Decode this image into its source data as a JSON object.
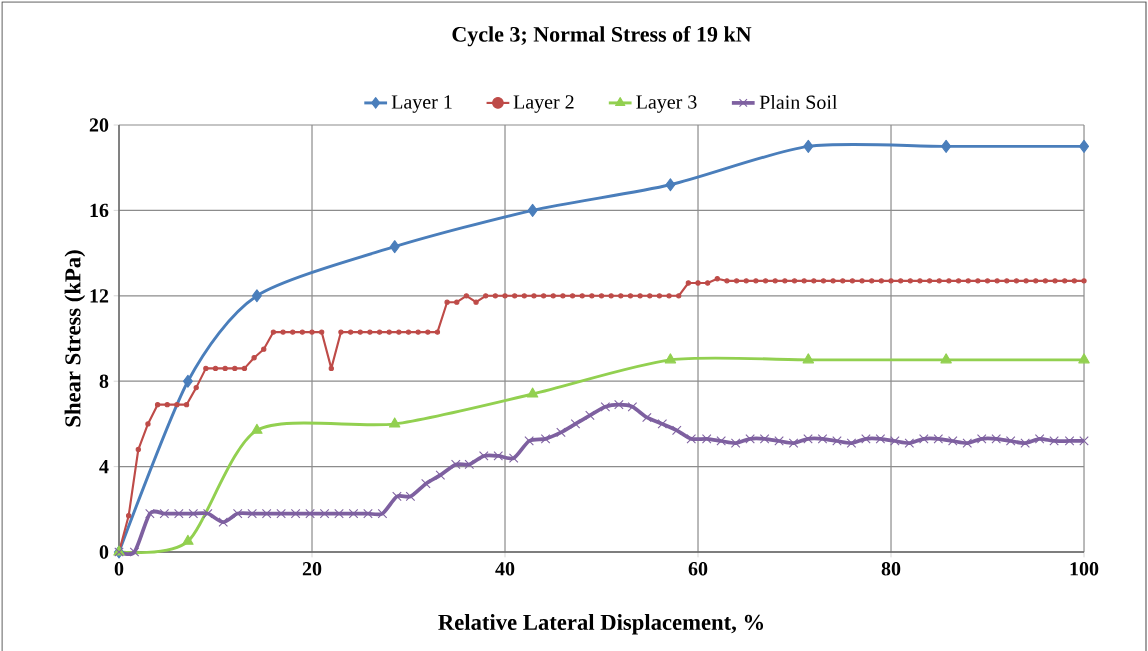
{
  "chart_data": {
    "type": "line",
    "title": "Cycle 3; Normal Stress of 19 kN",
    "xlabel": "Relative Lateral Displacement, %",
    "ylabel": "Shear Stress (kPa)",
    "xlim": [
      0,
      100
    ],
    "ylim": [
      0,
      20
    ],
    "xticks": [
      0,
      20,
      40,
      60,
      80,
      100
    ],
    "yticks": [
      0,
      4,
      8,
      12,
      16,
      20
    ],
    "grid": true,
    "legend": "top",
    "line_style": "solid",
    "series": [
      {
        "name": "Layer 1",
        "color": "#4a7ebb",
        "marker": "diamond",
        "x": [
          0,
          7.14,
          14.29,
          28.57,
          42.86,
          57.14,
          71.43,
          85.71,
          100
        ],
        "values": [
          0,
          8,
          12,
          14.3,
          16,
          17.2,
          19,
          19,
          19
        ]
      },
      {
        "name": "Layer 2",
        "color": "#be4b48",
        "marker": "circle",
        "x": [
          0,
          1,
          2,
          3,
          4,
          5,
          6,
          7,
          8,
          9,
          10,
          11,
          12,
          13,
          14,
          15,
          16,
          17,
          18,
          19,
          20,
          21,
          22,
          23,
          24,
          25,
          26,
          27,
          28,
          29,
          30,
          31,
          32,
          33,
          34,
          35,
          36,
          37,
          38,
          39,
          40,
          41,
          42,
          43,
          44,
          45,
          46,
          47,
          48,
          49,
          50,
          51,
          52,
          53,
          54,
          55,
          56,
          57,
          58,
          59,
          60,
          61,
          62,
          63,
          64,
          65,
          66,
          67,
          68,
          69,
          70,
          71,
          72,
          73,
          74,
          75,
          76,
          77,
          78,
          79,
          80,
          81,
          82,
          83,
          84,
          85,
          86,
          87,
          88,
          89,
          90,
          91,
          92,
          93,
          94,
          95,
          96,
          97,
          98,
          99,
          100
        ],
        "values": [
          0,
          1.7,
          4.8,
          6,
          6.9,
          6.9,
          6.9,
          6.9,
          7.7,
          8.6,
          8.6,
          8.6,
          8.6,
          8.6,
          9.1,
          9.5,
          10.3,
          10.3,
          10.3,
          10.3,
          10.3,
          10.3,
          8.6,
          10.3,
          10.3,
          10.3,
          10.3,
          10.3,
          10.3,
          10.3,
          10.3,
          10.3,
          10.3,
          10.3,
          11.7,
          11.7,
          12,
          11.7,
          12,
          12,
          12,
          12,
          12,
          12,
          12,
          12,
          12,
          12,
          12,
          12,
          12,
          12,
          12,
          12,
          12,
          12,
          12,
          12,
          12,
          12.6,
          12.6,
          12.6,
          12.8,
          12.7,
          12.7,
          12.7,
          12.7,
          12.7,
          12.7,
          12.7,
          12.7,
          12.7,
          12.7,
          12.7,
          12.7,
          12.7,
          12.7,
          12.7,
          12.7,
          12.7,
          12.7,
          12.7,
          12.7,
          12.7,
          12.7,
          12.7,
          12.7,
          12.7,
          12.7,
          12.7,
          12.7,
          12.7,
          12.7,
          12.7,
          12.7,
          12.7,
          12.7,
          12.7,
          12.7,
          12.7,
          12.7
        ]
      },
      {
        "name": "Layer 3",
        "color": "#92d050",
        "marker": "triangle",
        "x": [
          0,
          7.14,
          14.29,
          28.57,
          42.86,
          57.14,
          71.43,
          85.71,
          100
        ],
        "values": [
          0,
          0.5,
          5.7,
          6,
          7.4,
          9,
          9,
          9,
          9
        ]
      },
      {
        "name": "Plain Soil",
        "color": "#7e60a0",
        "marker": "cross",
        "x": [
          0,
          1.6,
          3.2,
          4.7,
          6.2,
          7.7,
          9.2,
          10.8,
          12.3,
          13.8,
          15.3,
          16.8,
          18.3,
          19.8,
          21.3,
          22.8,
          24.3,
          25.8,
          27.3,
          28.8,
          30.2,
          31.8,
          33.3,
          34.9,
          36.3,
          37.8,
          39.3,
          40.9,
          42.5,
          44.2,
          45.8,
          47.3,
          48.8,
          50.4,
          51.8,
          53.2,
          54.7,
          56.3,
          57.8,
          59.3,
          60.9,
          62.4,
          63.9,
          65.4,
          66.9,
          68.4,
          69.9,
          71.4,
          72.9,
          74.4,
          75.9,
          77.4,
          78.9,
          80.4,
          81.9,
          83.4,
          84.9,
          86.4,
          87.9,
          89.4,
          90.9,
          92.4,
          93.9,
          95.4,
          96.9,
          98.5,
          100
        ],
        "values": [
          0,
          0,
          1.8,
          1.8,
          1.8,
          1.8,
          1.8,
          1.4,
          1.8,
          1.8,
          1.8,
          1.8,
          1.8,
          1.8,
          1.8,
          1.8,
          1.8,
          1.8,
          1.8,
          2.6,
          2.6,
          3.2,
          3.6,
          4.1,
          4.1,
          4.5,
          4.5,
          4.4,
          5.2,
          5.3,
          5.6,
          6.0,
          6.4,
          6.8,
          6.9,
          6.8,
          6.3,
          6.0,
          5.7,
          5.3,
          5.3,
          5.2,
          5.1,
          5.3,
          5.3,
          5.2,
          5.1,
          5.3,
          5.3,
          5.2,
          5.1,
          5.3,
          5.3,
          5.2,
          5.1,
          5.3,
          5.3,
          5.2,
          5.1,
          5.3,
          5.3,
          5.2,
          5.1,
          5.3,
          5.2,
          5.2,
          5.2
        ]
      }
    ]
  }
}
